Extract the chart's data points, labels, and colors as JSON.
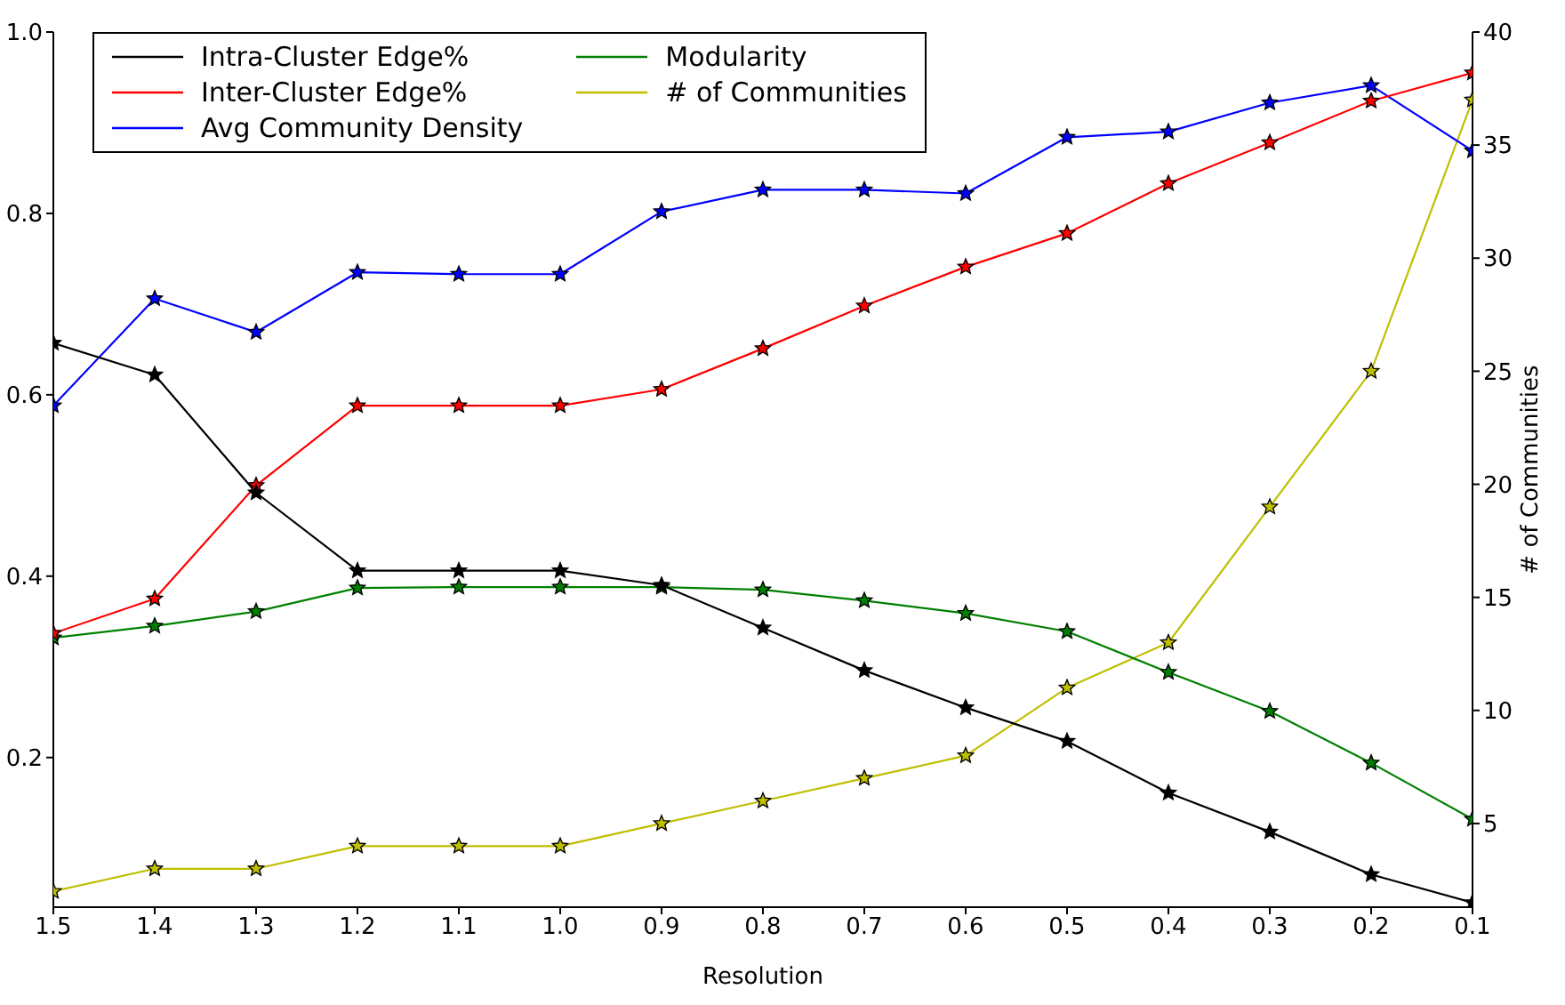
{
  "chart_data": {
    "type": "line",
    "xlabel": "Resolution",
    "y2label": "# of Communities",
    "x": [
      1.5,
      1.4,
      1.3,
      1.2,
      1.1,
      1.0,
      0.9,
      0.8,
      0.7,
      0.6,
      0.5,
      0.4,
      0.3,
      0.2,
      0.1
    ],
    "xlim": [
      1.5,
      0.1
    ],
    "xticks": [
      1.5,
      1.4,
      1.3,
      1.2,
      1.1,
      {
        "value": 1,
        "label": "1.0"
      },
      0.9,
      0.8,
      0.7,
      0.6,
      0.5,
      0.4,
      0.3,
      0.2,
      0.1
    ],
    "ylim": [
      0.035,
      1.0
    ],
    "yticks": [
      0.2,
      0.4,
      0.6,
      0.8,
      {
        "value": 1,
        "label": "1.0"
      }
    ],
    "y2lim": [
      1.3,
      40
    ],
    "y2ticks": [
      5,
      10,
      15,
      20,
      25,
      30,
      35,
      40
    ],
    "marker": "star",
    "grid": false,
    "legend": "top left",
    "series": [
      {
        "name": "Intra-Cluster Edge%",
        "color": "#000000",
        "values": [
          0.657,
          0.622,
          0.492,
          0.406,
          0.406,
          0.406,
          0.39,
          0.343,
          0.296,
          0.255,
          0.218,
          0.161,
          0.118,
          0.071,
          0.04
        ]
      },
      {
        "name": "Inter-Cluster Edge%",
        "color": "#ff0000",
        "values": [
          0.337,
          0.375,
          0.5,
          0.588,
          0.588,
          0.588,
          0.606,
          0.651,
          0.698,
          0.741,
          0.778,
          0.833,
          0.878,
          0.924,
          0.955
        ]
      },
      {
        "name": "Avg Community Density",
        "color": "#0000ff",
        "values": [
          0.588,
          0.706,
          0.669,
          0.735,
          0.733,
          0.733,
          0.802,
          0.826,
          0.826,
          0.822,
          0.884,
          0.89,
          0.922,
          0.941,
          0.869
        ]
      },
      {
        "name": "Modularity",
        "color": "#008000",
        "values": [
          0.332,
          0.345,
          0.361,
          0.387,
          0.388,
          0.388,
          0.388,
          0.385,
          0.373,
          0.359,
          0.339,
          0.294,
          0.251,
          0.194,
          0.132
        ]
      },
      {
        "name": "# of Communities",
        "color": "#bfbf00",
        "axis": "y2",
        "values": [
          2,
          3,
          3,
          4,
          4,
          4,
          5,
          6,
          7,
          8,
          11,
          13,
          19,
          25,
          37
        ]
      }
    ]
  }
}
